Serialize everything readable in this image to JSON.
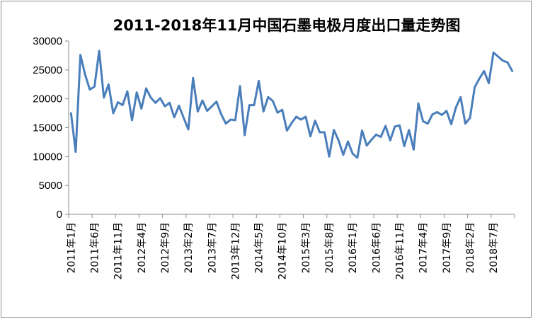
{
  "chart_data": {
    "type": "line",
    "title": "2011-2018年11月中国石墨电极月度出口量走势图",
    "xlabel": "",
    "ylabel": "",
    "ylim": [
      0,
      30000
    ],
    "yticks": [
      0,
      5000,
      10000,
      15000,
      20000,
      25000,
      30000
    ],
    "grid": false,
    "legend": "none",
    "line_color": "#4a7ebb",
    "x_tick_labels": [
      "2011年1月",
      "2011年6月",
      "2011年11月",
      "2012年4月",
      "2012年9月",
      "2013年2月",
      "2013年7月",
      "2013年12月",
      "2014年5月",
      "2014年10月",
      "2015年3月",
      "2015年8月",
      "2016年1月",
      "2016年6月",
      "2016年11月",
      "2017年4月",
      "2017年9月",
      "2018年2月",
      "2018年7月"
    ],
    "x_tick_every": 5,
    "series": [
      {
        "values": [
          17500,
          10800,
          27600,
          24200,
          21600,
          22100,
          28300,
          20200,
          22500,
          17500,
          19400,
          18900,
          21300,
          16300,
          21100,
          18300,
          21800,
          20200,
          19300,
          20100,
          18700,
          19300,
          16800,
          18800,
          16700,
          14700,
          23600,
          17800,
          19700,
          17900,
          18700,
          19500,
          17300,
          15700,
          16400,
          16300,
          22200,
          13700,
          18900,
          18900,
          23100,
          17800,
          20300,
          19600,
          17600,
          18100,
          14500,
          15800,
          16900,
          16400,
          16900,
          13500,
          16200,
          14200,
          14200,
          10000,
          14600,
          12800,
          10300,
          12600,
          10500,
          9800,
          14500,
          11900,
          12900,
          13800,
          13400,
          15300,
          12800,
          15200,
          15400,
          11800,
          14600,
          11200,
          19200,
          16100,
          15700,
          17300,
          17700,
          17200,
          17900,
          15600,
          18500,
          20300,
          15700,
          16700,
          22000,
          23500,
          24800,
          22700,
          28000,
          27300,
          26600,
          26300,
          24800
        ]
      }
    ]
  }
}
